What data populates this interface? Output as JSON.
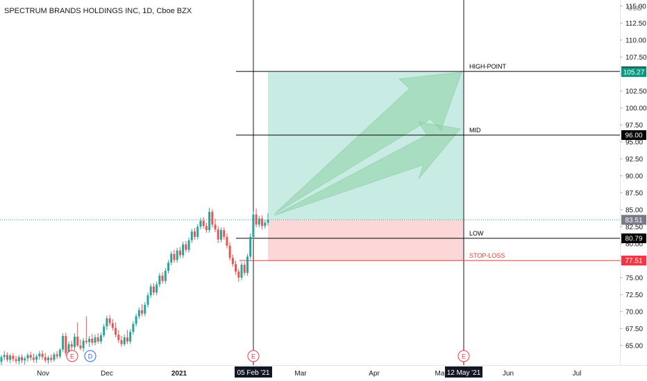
{
  "header": {
    "title": "SPECTRUM BRANDS HOLDINGS INC, 1D, Cboe BZX",
    "currency": "USD"
  },
  "chart_data": {
    "type": "candlestick",
    "ylim": [
      62.6,
      115.6
    ],
    "y_ticks": [
      "65.00",
      "67.50",
      "70.00",
      "72.50",
      "75.00",
      "77.50",
      "80.00",
      "82.50",
      "85.00",
      "87.50",
      "90.00",
      "92.50",
      "95.00",
      "97.50",
      "100.00",
      "102.50",
      "105.00",
      "107.50",
      "110.00",
      "112.50",
      "115.00"
    ],
    "x_ticks": [
      {
        "label": "Nov",
        "day": 0
      },
      {
        "label": "Dec",
        "day": 30
      },
      {
        "label": "2021",
        "day": 61
      },
      {
        "label": "Mar",
        "day": 120
      },
      {
        "label": "Apr",
        "day": 151
      },
      {
        "label": "May",
        "day": 181
      },
      {
        "label": "Jun",
        "day": 212
      },
      {
        "label": "Jul",
        "day": 242
      }
    ],
    "x_range_days": [
      -14,
      265
    ],
    "candles": [
      {
        "o": 62.6,
        "h": 63.6,
        "l": 62.0,
        "c": 63.3
      },
      {
        "o": 63.3,
        "h": 64.2,
        "l": 62.8,
        "c": 63.6
      },
      {
        "o": 63.6,
        "h": 64.0,
        "l": 62.6,
        "c": 62.9
      },
      {
        "o": 62.9,
        "h": 63.8,
        "l": 62.4,
        "c": 63.5
      },
      {
        "o": 63.5,
        "h": 63.9,
        "l": 62.6,
        "c": 63.0
      },
      {
        "o": 63.0,
        "h": 63.5,
        "l": 62.3,
        "c": 62.7
      },
      {
        "o": 62.7,
        "h": 63.6,
        "l": 62.2,
        "c": 63.3
      },
      {
        "o": 63.3,
        "h": 63.7,
        "l": 62.4,
        "c": 62.8
      },
      {
        "o": 62.8,
        "h": 63.4,
        "l": 62.2,
        "c": 63.1
      },
      {
        "o": 63.1,
        "h": 63.9,
        "l": 62.6,
        "c": 63.6
      },
      {
        "o": 63.6,
        "h": 64.1,
        "l": 62.8,
        "c": 63.2
      },
      {
        "o": 63.2,
        "h": 63.8,
        "l": 62.5,
        "c": 62.9
      },
      {
        "o": 62.9,
        "h": 63.7,
        "l": 62.4,
        "c": 63.4
      },
      {
        "o": 63.4,
        "h": 64.2,
        "l": 62.9,
        "c": 63.8
      },
      {
        "o": 63.8,
        "h": 64.3,
        "l": 62.9,
        "c": 63.3
      },
      {
        "o": 63.3,
        "h": 63.9,
        "l": 62.5,
        "c": 62.8
      },
      {
        "o": 62.8,
        "h": 63.5,
        "l": 62.3,
        "c": 63.2
      },
      {
        "o": 63.2,
        "h": 63.7,
        "l": 62.5,
        "c": 62.9
      },
      {
        "o": 62.9,
        "h": 64.0,
        "l": 62.6,
        "c": 63.7
      },
      {
        "o": 63.7,
        "h": 64.2,
        "l": 63.0,
        "c": 63.4
      },
      {
        "o": 63.4,
        "h": 64.6,
        "l": 63.1,
        "c": 64.4
      },
      {
        "o": 64.4,
        "h": 66.8,
        "l": 64.0,
        "c": 66.4
      },
      {
        "o": 66.4,
        "h": 66.9,
        "l": 63.5,
        "c": 63.9
      },
      {
        "o": 63.9,
        "h": 65.6,
        "l": 63.6,
        "c": 65.2
      },
      {
        "o": 65.2,
        "h": 65.7,
        "l": 64.3,
        "c": 64.8
      },
      {
        "o": 64.8,
        "h": 66.8,
        "l": 64.3,
        "c": 66.3
      },
      {
        "o": 66.3,
        "h": 68.4,
        "l": 64.8,
        "c": 65.0
      },
      {
        "o": 65.0,
        "h": 65.9,
        "l": 64.3,
        "c": 64.6
      },
      {
        "o": 64.6,
        "h": 66.1,
        "l": 64.1,
        "c": 65.7
      },
      {
        "o": 65.7,
        "h": 69.3,
        "l": 65.2,
        "c": 65.5
      },
      {
        "o": 65.5,
        "h": 66.4,
        "l": 64.8,
        "c": 66.0
      },
      {
        "o": 66.0,
        "h": 66.7,
        "l": 65.0,
        "c": 65.4
      },
      {
        "o": 65.4,
        "h": 66.6,
        "l": 65.0,
        "c": 66.2
      },
      {
        "o": 66.2,
        "h": 66.8,
        "l": 65.3,
        "c": 65.6
      },
      {
        "o": 65.6,
        "h": 66.9,
        "l": 65.2,
        "c": 66.5
      },
      {
        "o": 66.5,
        "h": 68.2,
        "l": 66.2,
        "c": 67.8
      },
      {
        "o": 67.8,
        "h": 69.4,
        "l": 67.3,
        "c": 69.0
      },
      {
        "o": 69.0,
        "h": 69.5,
        "l": 67.9,
        "c": 68.3
      },
      {
        "o": 68.3,
        "h": 68.9,
        "l": 67.2,
        "c": 67.6
      },
      {
        "o": 67.6,
        "h": 68.4,
        "l": 66.2,
        "c": 66.6
      },
      {
        "o": 66.6,
        "h": 67.3,
        "l": 65.4,
        "c": 65.8
      },
      {
        "o": 65.8,
        "h": 66.4,
        "l": 64.8,
        "c": 65.2
      },
      {
        "o": 65.2,
        "h": 66.6,
        "l": 64.9,
        "c": 66.2
      },
      {
        "o": 66.2,
        "h": 67.3,
        "l": 65.2,
        "c": 65.6
      },
      {
        "o": 65.6,
        "h": 67.4,
        "l": 65.2,
        "c": 67.0
      },
      {
        "o": 67.0,
        "h": 68.6,
        "l": 66.6,
        "c": 68.2
      },
      {
        "o": 68.2,
        "h": 69.7,
        "l": 67.8,
        "c": 69.3
      },
      {
        "o": 69.3,
        "h": 70.6,
        "l": 68.9,
        "c": 70.2
      },
      {
        "o": 70.2,
        "h": 71.1,
        "l": 69.3,
        "c": 69.7
      },
      {
        "o": 69.7,
        "h": 71.4,
        "l": 69.3,
        "c": 71.0
      },
      {
        "o": 71.0,
        "h": 72.8,
        "l": 70.6,
        "c": 72.4
      },
      {
        "o": 72.4,
        "h": 74.1,
        "l": 72.0,
        "c": 73.7
      },
      {
        "o": 73.7,
        "h": 74.2,
        "l": 72.4,
        "c": 72.8
      },
      {
        "o": 72.8,
        "h": 74.4,
        "l": 72.4,
        "c": 74.0
      },
      {
        "o": 74.0,
        "h": 75.7,
        "l": 73.6,
        "c": 75.3
      },
      {
        "o": 75.3,
        "h": 75.8,
        "l": 74.1,
        "c": 74.5
      },
      {
        "o": 74.5,
        "h": 76.4,
        "l": 74.1,
        "c": 76.0
      },
      {
        "o": 76.0,
        "h": 77.6,
        "l": 75.6,
        "c": 77.2
      },
      {
        "o": 77.2,
        "h": 78.9,
        "l": 76.8,
        "c": 78.5
      },
      {
        "o": 78.5,
        "h": 79.1,
        "l": 77.2,
        "c": 77.6
      },
      {
        "o": 77.6,
        "h": 79.4,
        "l": 77.2,
        "c": 79.0
      },
      {
        "o": 79.0,
        "h": 79.5,
        "l": 77.9,
        "c": 78.3
      },
      {
        "o": 78.3,
        "h": 80.3,
        "l": 77.9,
        "c": 79.9
      },
      {
        "o": 79.9,
        "h": 80.4,
        "l": 78.7,
        "c": 79.1
      },
      {
        "o": 79.1,
        "h": 80.9,
        "l": 78.7,
        "c": 80.5
      },
      {
        "o": 80.5,
        "h": 82.2,
        "l": 80.1,
        "c": 81.8
      },
      {
        "o": 81.8,
        "h": 82.3,
        "l": 80.6,
        "c": 81.0
      },
      {
        "o": 81.0,
        "h": 82.9,
        "l": 80.6,
        "c": 82.5
      },
      {
        "o": 82.5,
        "h": 83.8,
        "l": 82.1,
        "c": 83.4
      },
      {
        "o": 83.4,
        "h": 83.9,
        "l": 82.2,
        "c": 82.6
      },
      {
        "o": 82.6,
        "h": 83.1,
        "l": 81.6,
        "c": 82.0
      },
      {
        "o": 82.0,
        "h": 85.3,
        "l": 81.6,
        "c": 84.7
      },
      {
        "o": 84.7,
        "h": 85.1,
        "l": 82.4,
        "c": 82.8
      },
      {
        "o": 82.8,
        "h": 83.7,
        "l": 81.7,
        "c": 82.1
      },
      {
        "o": 82.1,
        "h": 82.6,
        "l": 80.1,
        "c": 80.6
      },
      {
        "o": 80.6,
        "h": 82.4,
        "l": 80.2,
        "c": 82.0
      },
      {
        "o": 82.0,
        "h": 82.4,
        "l": 80.6,
        "c": 81.0
      },
      {
        "o": 81.0,
        "h": 81.5,
        "l": 79.3,
        "c": 79.7
      },
      {
        "o": 79.7,
        "h": 80.2,
        "l": 77.5,
        "c": 77.9
      },
      {
        "o": 77.9,
        "h": 78.4,
        "l": 76.6,
        "c": 77.0
      },
      {
        "o": 77.0,
        "h": 77.5,
        "l": 75.4,
        "c": 75.9
      },
      {
        "o": 75.9,
        "h": 76.3,
        "l": 74.4,
        "c": 75.0
      },
      {
        "o": 75.0,
        "h": 77.3,
        "l": 74.6,
        "c": 76.9
      },
      {
        "o": 76.9,
        "h": 77.3,
        "l": 75.3,
        "c": 75.7
      },
      {
        "o": 75.7,
        "h": 78.5,
        "l": 75.3,
        "c": 78.1
      },
      {
        "o": 78.1,
        "h": 81.5,
        "l": 77.7,
        "c": 81.0
      },
      {
        "o": 81.0,
        "h": 84.8,
        "l": 80.6,
        "c": 84.3
      },
      {
        "o": 84.3,
        "h": 85.2,
        "l": 82.4,
        "c": 82.8
      },
      {
        "o": 82.8,
        "h": 84.1,
        "l": 82.4,
        "c": 83.7
      },
      {
        "o": 83.7,
        "h": 84.2,
        "l": 82.1,
        "c": 82.6
      },
      {
        "o": 82.6,
        "h": 83.5,
        "l": 82.2,
        "c": 83.1
      },
      {
        "o": 83.1,
        "h": 84.5,
        "l": 82.7,
        "c": 83.5
      }
    ],
    "price_lines": [
      {
        "label": "HIGH-POINT",
        "value": 105.37,
        "color": "#000000"
      },
      {
        "label": "MID",
        "value": 96.0,
        "color": "#000000"
      },
      {
        "label": "LOW",
        "value": 80.79,
        "color": "#000000"
      },
      {
        "label": "STOP-LOSS",
        "value": 77.52,
        "color": "#e53935"
      }
    ],
    "axis_labels": [
      {
        "value": 105.37,
        "text": "105.37",
        "bg": "#000000",
        "fg": "#ffffff"
      },
      {
        "value": 105.27,
        "text": "105.27",
        "bg": "#089981",
        "fg": "#ffffff"
      },
      {
        "value": 96.0,
        "text": "96.00",
        "bg": "#000000",
        "fg": "#ffffff"
      },
      {
        "value": 83.52,
        "text": "83.52",
        "bg": "#26a69a",
        "fg": "#ffffff"
      },
      {
        "value": 83.51,
        "text": "83.51",
        "bg": "#787b86",
        "fg": "#ffffff"
      },
      {
        "value": 80.79,
        "text": "80.79",
        "bg": "#000000",
        "fg": "#ffffff"
      },
      {
        "value": 77.52,
        "text": "77.52",
        "bg": "#e53935",
        "fg": "#ffffff"
      },
      {
        "value": 77.51,
        "text": "77.51",
        "bg": "#f23645",
        "fg": "#ffffff"
      }
    ],
    "current_price": 83.52,
    "vertical_markers": [
      {
        "day": 96,
        "label": "05 Feb '21"
      },
      {
        "day": 192,
        "label": "12 May '21"
      }
    ],
    "position": {
      "entry": 83.52,
      "target": 105.27,
      "stop": 77.52,
      "start_day": 96,
      "end_day": 192
    },
    "event_markers": [
      {
        "day": -1,
        "text": "E",
        "color": "#f23645"
      },
      {
        "day": 7,
        "text": "D",
        "color": "#2962ff"
      },
      {
        "day": 96,
        "text": "E",
        "color": "#f23645"
      },
      {
        "day": 192,
        "text": "E",
        "color": "#f23645"
      }
    ],
    "colors": {
      "up": "#26a69a",
      "down": "#ef5350",
      "profit_zone": "#c8ebe4",
      "loss_zone": "#fbd7d7",
      "arrow": "#8fd1a4"
    }
  }
}
